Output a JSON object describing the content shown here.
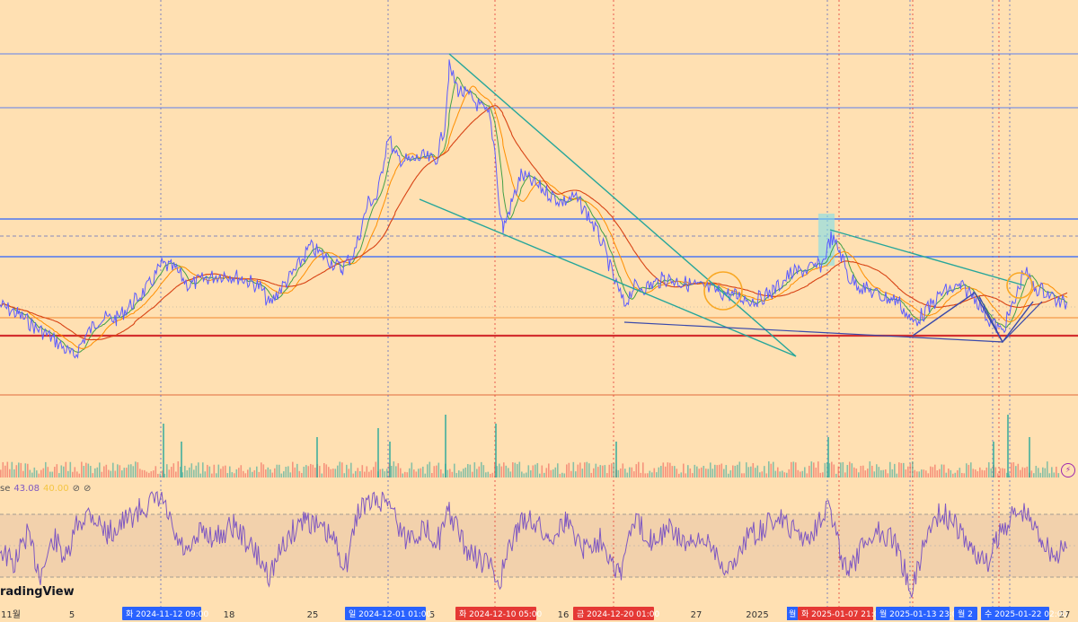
{
  "chart_data": {
    "type": "line",
    "title": "",
    "xlabel": "",
    "ylabel": "",
    "x_ticks": [
      "11월",
      "5",
      "18",
      "25",
      "5",
      "16",
      "27",
      "2025",
      "27"
    ],
    "date_flags": [
      {
        "label": "화 2024-11-12   09:00",
        "color": "#2962ff"
      },
      {
        "label": "일 2024-12-01   01:00",
        "color": "#2962ff"
      },
      {
        "label": "화 2024-12-10   05:00",
        "color": "#e53935"
      },
      {
        "label": "금 2024-12-20   01:00",
        "color": "#e53935"
      },
      {
        "label": "화 2025-01-07   21:00",
        "color": "#e53935"
      },
      {
        "label": "월 2025-01-13   23:00",
        "color": "#2962ff"
      },
      {
        "label": "월 2",
        "color": "#2962ff"
      },
      {
        "label": "수 2025-01-22   02:00",
        "color": "#2962ff"
      }
    ],
    "extra_flag_text": "월",
    "price_path": [
      [
        0,
        340
      ],
      [
        20,
        350
      ],
      [
        40,
        365
      ],
      [
        60,
        378
      ],
      [
        82,
        398
      ],
      [
        95,
        375
      ],
      [
        110,
        355
      ],
      [
        130,
        355
      ],
      [
        150,
        335
      ],
      [
        165,
        320
      ],
      [
        180,
        295
      ],
      [
        195,
        300
      ],
      [
        210,
        318
      ],
      [
        230,
        310
      ],
      [
        250,
        305
      ],
      [
        270,
        310
      ],
      [
        290,
        320
      ],
      [
        300,
        340
      ],
      [
        310,
        325
      ],
      [
        330,
        300
      ],
      [
        345,
        275
      ],
      [
        360,
        285
      ],
      [
        380,
        300
      ],
      [
        395,
        280
      ],
      [
        410,
        225
      ],
      [
        420,
        220
      ],
      [
        432,
        150
      ],
      [
        440,
        175
      ],
      [
        455,
        180
      ],
      [
        470,
        175
      ],
      [
        485,
        180
      ],
      [
        495,
        140
      ],
      [
        500,
        75
      ],
      [
        510,
        100
      ],
      [
        525,
        110
      ],
      [
        545,
        130
      ],
      [
        552,
        175
      ],
      [
        555,
        225
      ],
      [
        560,
        255
      ],
      [
        570,
        225
      ],
      [
        580,
        195
      ],
      [
        595,
        205
      ],
      [
        610,
        215
      ],
      [
        625,
        225
      ],
      [
        640,
        220
      ],
      [
        655,
        240
      ],
      [
        670,
        270
      ],
      [
        683,
        310
      ],
      [
        695,
        340
      ],
      [
        705,
        320
      ],
      [
        720,
        320
      ],
      [
        740,
        310
      ],
      [
        760,
        315
      ],
      [
        780,
        320
      ],
      [
        800,
        325
      ],
      [
        820,
        330
      ],
      [
        840,
        335
      ],
      [
        860,
        325
      ],
      [
        880,
        305
      ],
      [
        900,
        300
      ],
      [
        915,
        295
      ],
      [
        925,
        265
      ],
      [
        935,
        280
      ],
      [
        945,
        310
      ],
      [
        960,
        320
      ],
      [
        980,
        330
      ],
      [
        1000,
        335
      ],
      [
        1015,
        360
      ],
      [
        1030,
        348
      ],
      [
        1050,
        325
      ],
      [
        1070,
        320
      ],
      [
        1085,
        330
      ],
      [
        1100,
        355
      ],
      [
        1115,
        370
      ],
      [
        1130,
        335
      ],
      [
        1140,
        300
      ],
      [
        1150,
        320
      ],
      [
        1165,
        325
      ],
      [
        1180,
        338
      ],
      [
        1188,
        338
      ]
    ],
    "volume": [
      {
        "x": 181,
        "h": 60
      },
      {
        "x": 201,
        "h": 40
      },
      {
        "x": 352,
        "h": 45
      },
      {
        "x": 420,
        "h": 55
      },
      {
        "x": 433,
        "h": 40
      },
      {
        "x": 495,
        "h": 70
      },
      {
        "x": 551,
        "h": 60
      },
      {
        "x": 685,
        "h": 40
      },
      {
        "x": 921,
        "h": 45
      },
      {
        "x": 1105,
        "h": 40
      },
      {
        "x": 1121,
        "h": 70
      },
      {
        "x": 1145,
        "h": 45
      }
    ],
    "rsi": [
      [
        0,
        610
      ],
      [
        15,
        630
      ],
      [
        30,
        595
      ],
      [
        45,
        640
      ],
      [
        60,
        600
      ],
      [
        75,
        625
      ],
      [
        85,
        585
      ],
      [
        100,
        570
      ],
      [
        120,
        595
      ],
      [
        140,
        580
      ],
      [
        160,
        565
      ],
      [
        180,
        555
      ],
      [
        195,
        600
      ],
      [
        210,
        620
      ],
      [
        225,
        590
      ],
      [
        240,
        600
      ],
      [
        260,
        585
      ],
      [
        280,
        610
      ],
      [
        300,
        640
      ],
      [
        320,
        600
      ],
      [
        340,
        575
      ],
      [
        355,
        590
      ],
      [
        370,
        600
      ],
      [
        385,
        630
      ],
      [
        400,
        565
      ],
      [
        415,
        560
      ],
      [
        432,
        555
      ],
      [
        450,
        600
      ],
      [
        470,
        590
      ],
      [
        490,
        600
      ],
      [
        500,
        570
      ],
      [
        520,
        615
      ],
      [
        545,
        630
      ],
      [
        555,
        650
      ],
      [
        575,
        590
      ],
      [
        590,
        575
      ],
      [
        610,
        600
      ],
      [
        630,
        580
      ],
      [
        650,
        610
      ],
      [
        670,
        600
      ],
      [
        690,
        640
      ],
      [
        705,
        580
      ],
      [
        725,
        600
      ],
      [
        745,
        590
      ],
      [
        770,
        610
      ],
      [
        790,
        600
      ],
      [
        810,
        640
      ],
      [
        830,
        600
      ],
      [
        850,
        590
      ],
      [
        865,
        575
      ],
      [
        880,
        590
      ],
      [
        900,
        600
      ],
      [
        922,
        560
      ],
      [
        935,
        615
      ],
      [
        945,
        640
      ],
      [
        960,
        610
      ],
      [
        975,
        590
      ],
      [
        995,
        600
      ],
      [
        1015,
        660
      ],
      [
        1030,
        600
      ],
      [
        1045,
        570
      ],
      [
        1060,
        580
      ],
      [
        1080,
        610
      ],
      [
        1100,
        630
      ],
      [
        1110,
        600
      ],
      [
        1125,
        575
      ],
      [
        1140,
        570
      ],
      [
        1160,
        600
      ],
      [
        1175,
        620
      ],
      [
        1188,
        610
      ]
    ],
    "rsi_values": [
      "43.08",
      "40.00"
    ],
    "rsi_title": "se",
    "brand": "radingView",
    "bolt_icon": "⚡"
  }
}
